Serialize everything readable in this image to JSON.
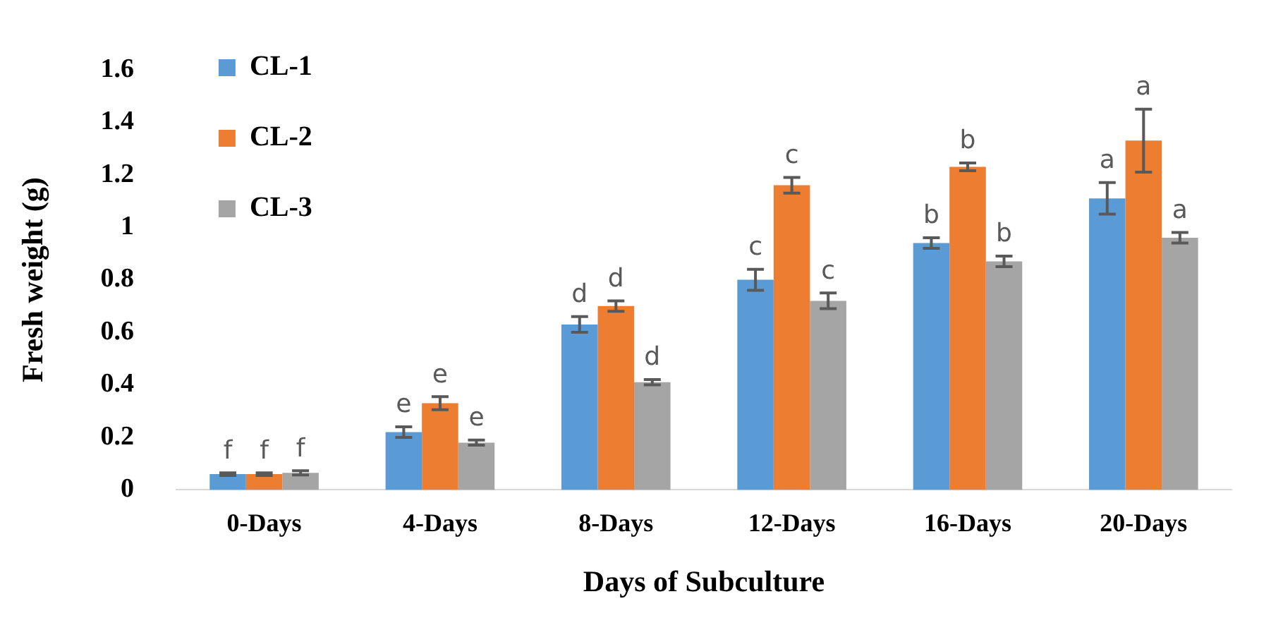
{
  "chart_data": {
    "type": "bar",
    "xlabel": "Days of Subculture",
    "ylabel": "Fresh weight (g)",
    "categories": [
      "0-Days",
      "4-Days",
      "8-Days",
      "12-Days",
      "16-Days",
      "20-Days"
    ],
    "series": [
      {
        "name": "CL-1",
        "color": "#5b9bd5",
        "values": [
          0.06,
          0.22,
          0.63,
          0.8,
          0.94,
          1.11
        ],
        "errors": [
          0.005,
          0.02,
          0.03,
          0.04,
          0.02,
          0.06
        ]
      },
      {
        "name": "CL-2",
        "color": "#ed7d31",
        "values": [
          0.06,
          0.33,
          0.7,
          1.16,
          1.23,
          1.33
        ],
        "errors": [
          0.005,
          0.025,
          0.02,
          0.03,
          0.015,
          0.12
        ]
      },
      {
        "name": "CL-3",
        "color": "#a5a5a5",
        "values": [
          0.065,
          0.18,
          0.41,
          0.72,
          0.87,
          0.96
        ],
        "errors": [
          0.008,
          0.01,
          0.01,
          0.03,
          0.02,
          0.02
        ]
      }
    ],
    "ylim": [
      0,
      1.6
    ],
    "yticks": [
      0,
      0.2,
      0.4,
      0.6,
      0.8,
      1,
      1.2,
      1.4,
      1.6
    ],
    "grid": false,
    "legend": "top left",
    "annotations": [
      "f",
      "f",
      "f",
      "e",
      "e",
      "e",
      "d",
      "d",
      "d",
      "c",
      "c",
      "c",
      "b",
      "b",
      "b",
      "a",
      "a",
      "a"
    ]
  }
}
